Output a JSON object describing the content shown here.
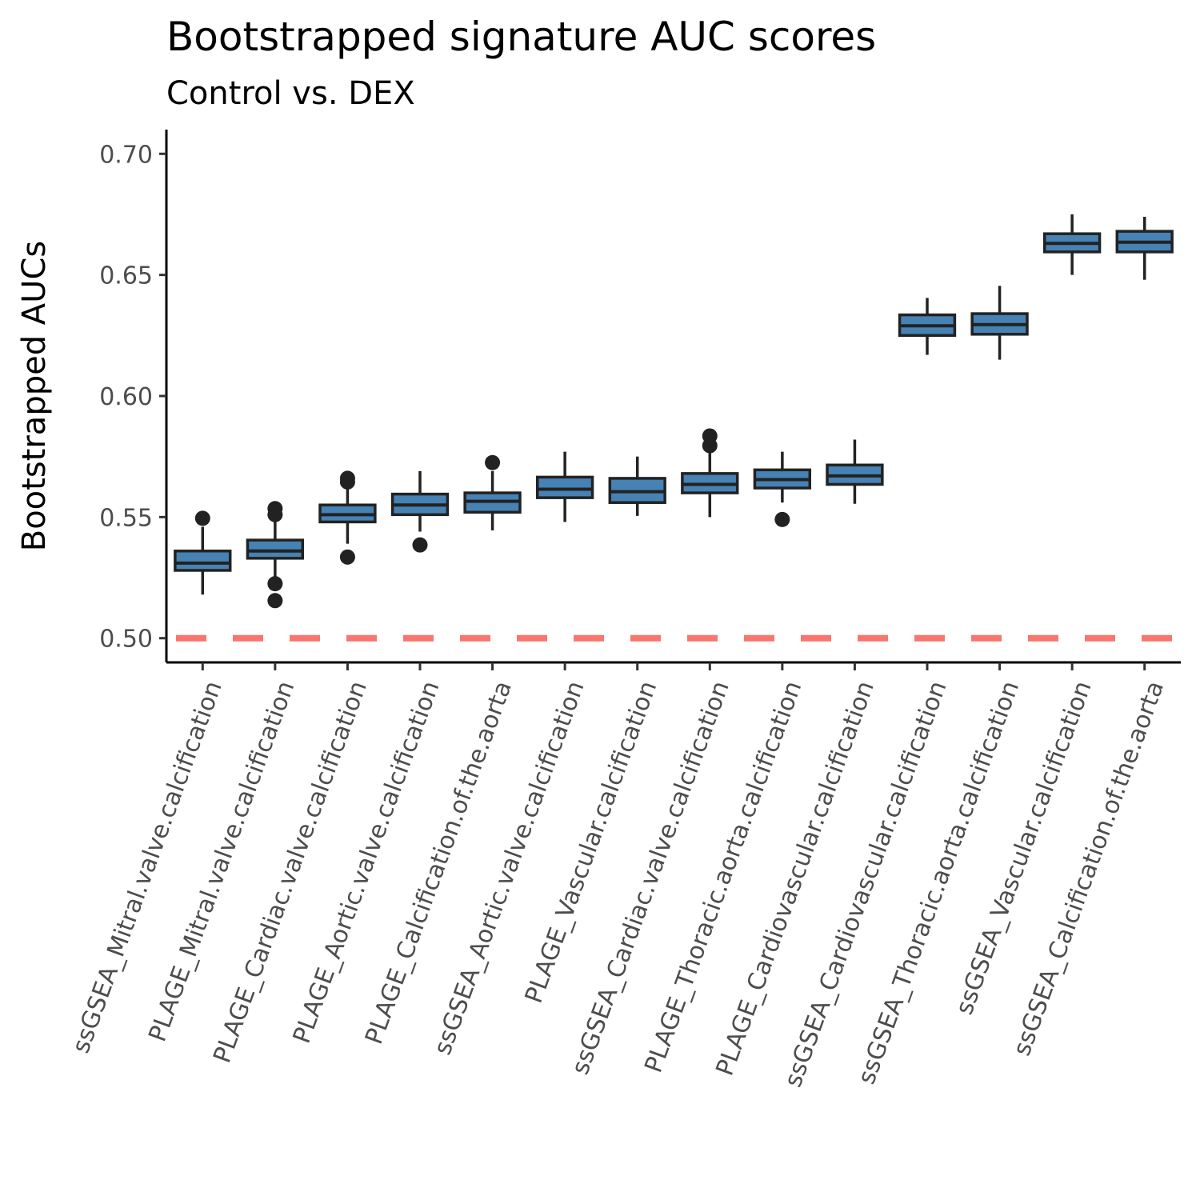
{
  "chart_data": {
    "type": "boxplot",
    "title": "Bootstrapped signature AUC scores",
    "subtitle": "Control vs. DEX",
    "xlabel": "",
    "ylabel": "Bootstrapped AUCs",
    "ylim": [
      0.49,
      0.71
    ],
    "yticks": [
      "0.50",
      "0.55",
      "0.60",
      "0.65",
      "0.70"
    ],
    "reference_line": {
      "value": 0.5,
      "style": "dashed",
      "color": "#F8766D"
    },
    "box_fill": "#4682B4",
    "box_line": "#222222",
    "categories": [
      "ssGSEA_Mitral.valve.calcification",
      "PLAGE_Mitral.valve.calcification",
      "PLAGE_Cardiac.valve.calcification",
      "PLAGE_Aortic.valve.calcification",
      "PLAGE_Calcification.of.the.aorta",
      "ssGSEA_Aortic.valve.calcification",
      "PLAGE_Vascular.calcification",
      "ssGSEA_Cardiac.valve.calcification",
      "PLAGE_Thoracic.aorta.calcification",
      "PLAGE_Cardiovascular.calcification",
      "ssGSEA_Cardiovascular.calcification",
      "ssGSEA_Thoracic.aorta.calcification",
      "ssGSEA_Vascular.calcification",
      "ssGSEA_Calcification.of.the.aorta"
    ],
    "boxes": [
      {
        "whisker_low": 0.518,
        "q1": 0.528,
        "median": 0.531,
        "q3": 0.536,
        "whisker_high": 0.546,
        "outliers": [
          0.5495
        ]
      },
      {
        "whisker_low": 0.524,
        "q1": 0.533,
        "median": 0.536,
        "q3": 0.5405,
        "whisker_high": 0.55,
        "outliers": [
          0.5535,
          0.551,
          0.5225,
          0.5155
        ]
      },
      {
        "whisker_low": 0.539,
        "q1": 0.548,
        "median": 0.551,
        "q3": 0.555,
        "whisker_high": 0.564,
        "outliers": [
          0.566,
          0.5645,
          0.5335
        ]
      },
      {
        "whisker_low": 0.544,
        "q1": 0.551,
        "median": 0.555,
        "q3": 0.5595,
        "whisker_high": 0.569,
        "outliers": [
          0.5385
        ]
      },
      {
        "whisker_low": 0.5445,
        "q1": 0.552,
        "median": 0.5565,
        "q3": 0.56,
        "whisker_high": 0.569,
        "outliers": [
          0.5725
        ]
      },
      {
        "whisker_low": 0.548,
        "q1": 0.558,
        "median": 0.5615,
        "q3": 0.5665,
        "whisker_high": 0.577,
        "outliers": []
      },
      {
        "whisker_low": 0.5505,
        "q1": 0.556,
        "median": 0.5605,
        "q3": 0.566,
        "whisker_high": 0.575,
        "outliers": []
      },
      {
        "whisker_low": 0.55,
        "q1": 0.56,
        "median": 0.5635,
        "q3": 0.568,
        "whisker_high": 0.577,
        "outliers": [
          0.5835,
          0.5795
        ]
      },
      {
        "whisker_low": 0.556,
        "q1": 0.562,
        "median": 0.5655,
        "q3": 0.5695,
        "whisker_high": 0.577,
        "outliers": [
          0.549
        ]
      },
      {
        "whisker_low": 0.5555,
        "q1": 0.5635,
        "median": 0.567,
        "q3": 0.5715,
        "whisker_high": 0.582,
        "outliers": []
      },
      {
        "whisker_low": 0.617,
        "q1": 0.625,
        "median": 0.629,
        "q3": 0.6335,
        "whisker_high": 0.6405,
        "outliers": []
      },
      {
        "whisker_low": 0.615,
        "q1": 0.6255,
        "median": 0.6295,
        "q3": 0.634,
        "whisker_high": 0.6455,
        "outliers": []
      },
      {
        "whisker_low": 0.65,
        "q1": 0.6595,
        "median": 0.663,
        "q3": 0.667,
        "whisker_high": 0.675,
        "outliers": []
      },
      {
        "whisker_low": 0.648,
        "q1": 0.6595,
        "median": 0.6635,
        "q3": 0.668,
        "whisker_high": 0.674,
        "outliers": []
      }
    ]
  }
}
